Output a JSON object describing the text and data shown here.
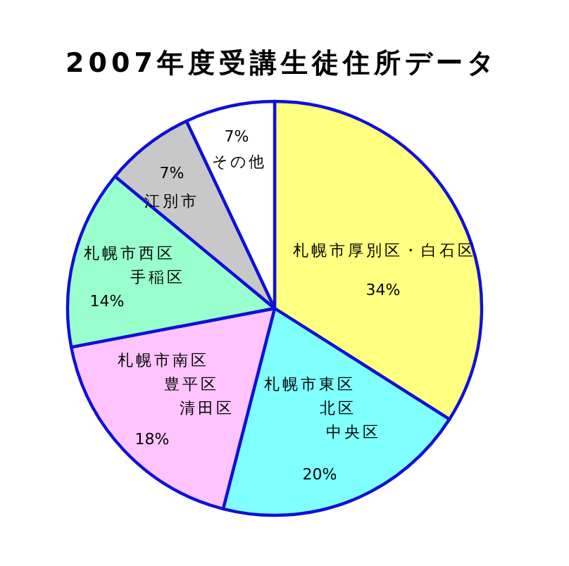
{
  "chart_data": {
    "type": "pie",
    "title": "2007年度受講生徒住所データ",
    "categories": [
      "札幌市厚別区・白石区",
      "札幌市東区北区中央区",
      "札幌市南区豊平区清田区",
      "札幌市西区手稲区",
      "江別市",
      "その他"
    ],
    "values": [
      34,
      20,
      18,
      14,
      7,
      7
    ],
    "value_labels": [
      "34%",
      "20%",
      "18%",
      "14%",
      "7%",
      "7%"
    ],
    "colors": [
      "#ffff80",
      "#80ffff",
      "#ffc4ff",
      "#99ffcc",
      "#c8c8c8",
      "#ffffff"
    ]
  }
}
